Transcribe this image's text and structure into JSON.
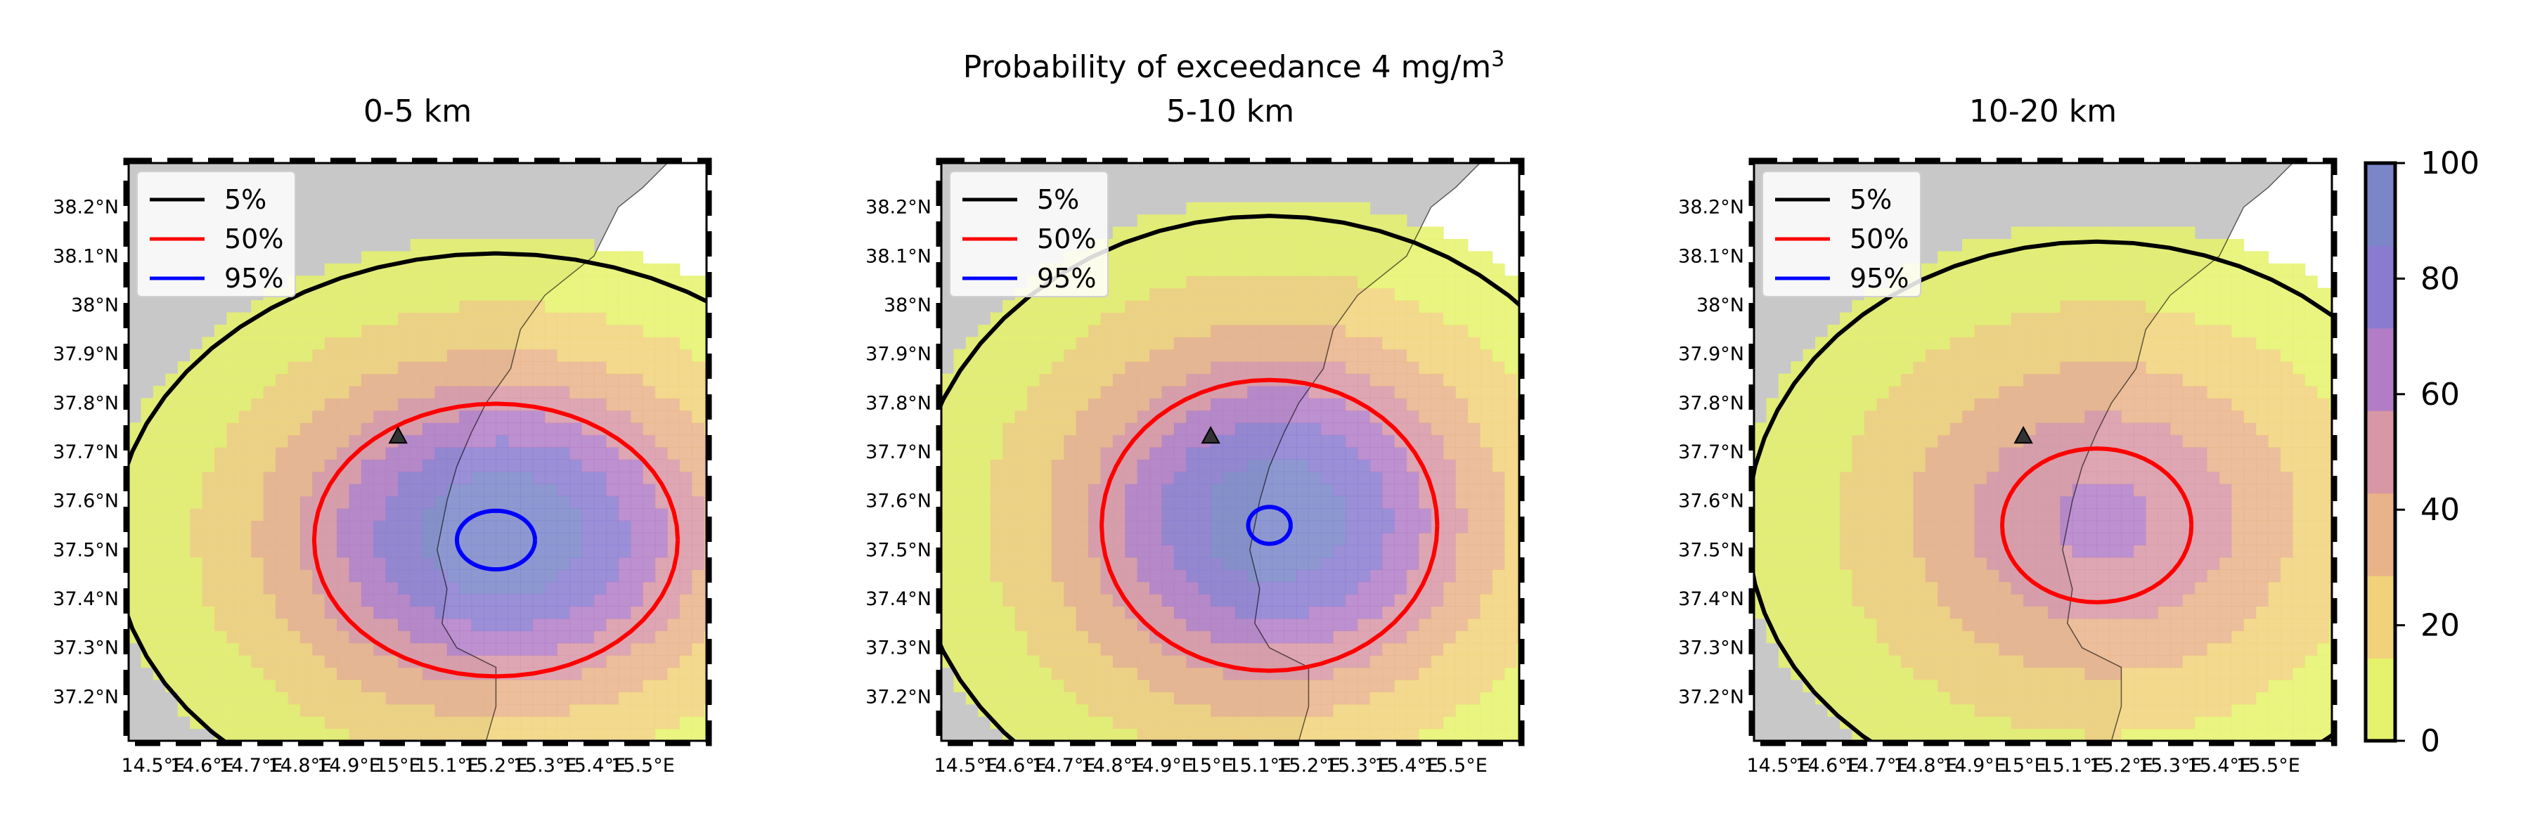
{
  "figure": {
    "suptitle": "Probability of exceedance 4 mg/m",
    "suptitle_superscript": "3",
    "colormap": [
      "#e5f26b",
      "#f1d27a",
      "#e9b389",
      "#d797a4",
      "#b27cc7",
      "#8a7bd1",
      "#7a86c8"
    ]
  },
  "chart_data": [
    {
      "type": "heatmap",
      "panel": "0-5 km",
      "title": "0-5 km",
      "x_tick_labels": [
        "14.5°E",
        "14.6°E",
        "14.7°E",
        "14.8°E",
        "14.9°E",
        "15°E",
        "15.1°E",
        "15.2°E",
        "15.3°E",
        "15.4°E",
        "15.5°E"
      ],
      "y_tick_labels": [
        "38.2°N",
        "38.1°N",
        "38°N",
        "37.9°N",
        "37.8°N",
        "37.7°N",
        "37.6°N",
        "37.5°N",
        "37.4°N",
        "37.3°N",
        "37.2°N"
      ],
      "x_range": [
        14.45,
        15.63
      ],
      "y_range": [
        37.11,
        38.29
      ],
      "legend": [
        {
          "label": "5%",
          "color": "#000000"
        },
        {
          "label": "50%",
          "color": "#ff0000"
        },
        {
          "label": "95%",
          "color": "#0000ff"
        }
      ],
      "legend_position": "upper left",
      "vent": {
        "lon": 15.0,
        "lat": 37.73
      },
      "field": {
        "center": [
          15.2,
          37.52
        ],
        "peak": 98,
        "sigma_lon": 0.32,
        "sigma_lat": 0.24
      }
    },
    {
      "type": "heatmap",
      "panel": "5-10 km",
      "title": "5-10 km",
      "x_tick_labels": [
        "14.5°E",
        "14.6°E",
        "14.7°E",
        "14.8°E",
        "14.9°E",
        "15°E",
        "15.1°E",
        "15.2°E",
        "15.3°E",
        "15.4°E",
        "15.5°E"
      ],
      "y_tick_labels": [
        "38.2°N",
        "38.1°N",
        "38°N",
        "37.9°N",
        "37.8°N",
        "37.7°N",
        "37.6°N",
        "37.5°N",
        "37.4°N",
        "37.3°N",
        "37.2°N"
      ],
      "x_range": [
        14.45,
        15.63
      ],
      "y_range": [
        37.11,
        38.29
      ],
      "legend": [
        {
          "label": "5%",
          "color": "#000000"
        },
        {
          "label": "50%",
          "color": "#ff0000"
        },
        {
          "label": "95%",
          "color": "#0000ff"
        }
      ],
      "legend_position": "upper left",
      "vent": {
        "lon": 15.0,
        "lat": 37.73
      },
      "field": {
        "center": [
          15.12,
          37.55
        ],
        "peak": 96,
        "sigma_lon": 0.3,
        "sigma_lat": 0.26
      }
    },
    {
      "type": "heatmap",
      "panel": "10-20 km",
      "title": "10-20 km",
      "x_tick_labels": [
        "14.5°E",
        "14.6°E",
        "14.7°E",
        "14.8°E",
        "14.9°E",
        "15°E",
        "15.1°E",
        "15.2°E",
        "15.3°E",
        "15.4°E",
        "15.5°E"
      ],
      "y_tick_labels": [
        "38.2°N",
        "38.1°N",
        "38°N",
        "37.9°N",
        "37.8°N",
        "37.7°N",
        "37.6°N",
        "37.5°N",
        "37.4°N",
        "37.3°N",
        "37.2°N"
      ],
      "x_range": [
        14.45,
        15.63
      ],
      "y_range": [
        37.11,
        38.29
      ],
      "legend": [
        {
          "label": "5%",
          "color": "#000000"
        },
        {
          "label": "50%",
          "color": "#ff0000"
        },
        {
          "label": "95%",
          "color": "#0000ff"
        }
      ],
      "legend_position": "upper left",
      "vent": {
        "lon": 15.0,
        "lat": 37.73
      },
      "field": {
        "center": [
          15.15,
          37.55
        ],
        "peak": 60,
        "sigma_lon": 0.32,
        "sigma_lat": 0.26
      }
    }
  ],
  "colorbar": {
    "ticks": [
      0,
      20,
      40,
      60,
      80,
      100
    ],
    "range": [
      0,
      100
    ]
  }
}
